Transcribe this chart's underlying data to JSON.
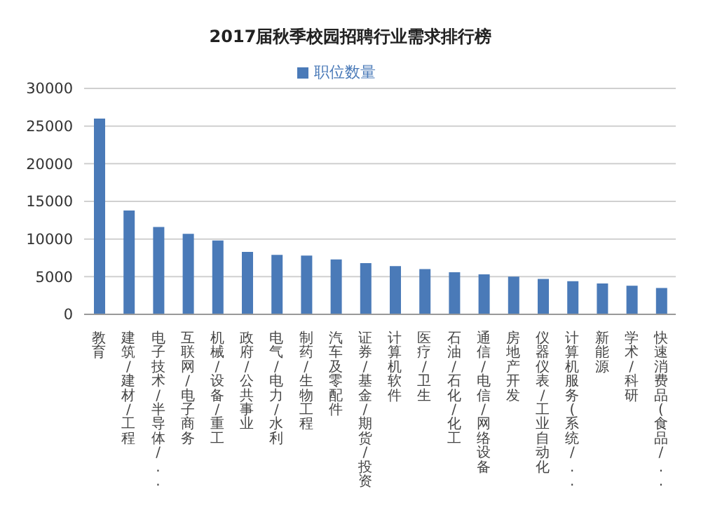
{
  "chart_data": {
    "type": "bar",
    "title": "2017届秋季校园招聘行业需求排行榜",
    "categories": [
      "教育",
      "建筑/建材/工程",
      "电子技术/半导体/...",
      "互联网/电子商务",
      "机械/设备/重工",
      "政府/公共事业",
      "电气/电力/水利",
      "制药/生物工程",
      "汽车及零配件",
      "证券/基金/期货/投资",
      "计算机软件",
      "医疗/卫生",
      "石油/石化/化工",
      "通信/电信/网络设备",
      "房地产开发",
      "仪器仪表/工业自动化",
      "计算机服务(系统/...",
      "新能源",
      "学术/科研",
      "快速消费品(食品/..."
    ],
    "series": [
      {
        "name": "职位数量",
        "color": "#4a7ab8",
        "values": [
          26000,
          13800,
          11600,
          10700,
          9800,
          8300,
          7900,
          7800,
          7300,
          6800,
          6400,
          6000,
          5600,
          5300,
          5000,
          4700,
          4400,
          4100,
          3800,
          3500
        ]
      }
    ],
    "ylim": [
      0,
      30000
    ],
    "yticks": [
      0,
      5000,
      10000,
      15000,
      20000,
      25000,
      30000
    ],
    "grid": "y",
    "legend": "top"
  }
}
